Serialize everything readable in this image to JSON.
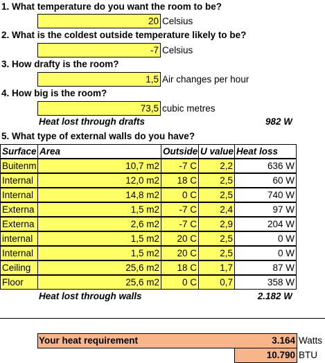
{
  "q1": {
    "label": "1. What temperature do you want the room to be?",
    "value": "20",
    "unit": "Celsius"
  },
  "q2": {
    "label": "2. What is the coldest outside temperature likely to be?",
    "value": "-7",
    "unit": "Celsius"
  },
  "q3": {
    "label": "3. How drafty is the room?",
    "value": "1,5",
    "unit": "Air changes per hour"
  },
  "q4": {
    "label": "4. How big is the room?",
    "value": "73,5",
    "unit": "cubic metres"
  },
  "drafts": {
    "label": "Heat lost through drafts",
    "value": "982 W"
  },
  "q5": {
    "label": "5. What type of external walls do you have?"
  },
  "table": {
    "headers": [
      "Surface",
      "Area",
      "Outside",
      "U value",
      "Heat loss"
    ],
    "rows": [
      {
        "surface": "Buitenm",
        "area": "10,7 m2",
        "outside": "-7 C",
        "u": "2,2",
        "loss": "636 W"
      },
      {
        "surface": "Internal",
        "area": "12,0 m2",
        "outside": "18 C",
        "u": "2,5",
        "loss": "60 W"
      },
      {
        "surface": "Internal",
        "area": "14,8 m2",
        "outside": "0 C",
        "u": "2,5",
        "loss": "740 W"
      },
      {
        "surface": "Externa",
        "area": "1,5 m2",
        "outside": "-7 C",
        "u": "2,4",
        "loss": "97 W"
      },
      {
        "surface": "Externa",
        "area": "2,6 m2",
        "outside": "-7 C",
        "u": "2,9",
        "loss": "204 W"
      },
      {
        "surface": "internal",
        "area": "1,5 m2",
        "outside": "20 C",
        "u": "2,5",
        "loss": "0 W"
      },
      {
        "surface": "Internal",
        "area": "1,5 m2",
        "outside": "20 C",
        "u": "2,5",
        "loss": "0 W"
      },
      {
        "surface": "Ceiling",
        "area": "25,6 m2",
        "outside": "18 C",
        "u": "1,7",
        "loss": "87 W"
      },
      {
        "surface": "Floor",
        "area": "25,6 m2",
        "outside": "0 C",
        "u": "0,7",
        "loss": "358 W"
      }
    ]
  },
  "walls": {
    "label": "Heat lost through walls",
    "value": "2.182 W"
  },
  "requirement": {
    "label": "Your heat requirement",
    "watts": "3.164",
    "watts_unit": "Watts",
    "btu": "10.790",
    "btu_unit": "BTU"
  },
  "colors": {
    "input": "#ffff66",
    "result": "#f8b58a"
  }
}
